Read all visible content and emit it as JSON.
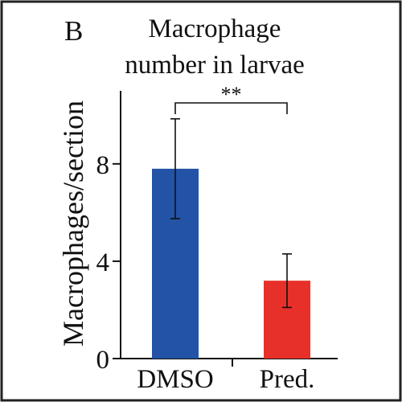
{
  "panel_label": "B",
  "chart_data": {
    "type": "bar",
    "title": [
      "Macrophage",
      "number in larvae"
    ],
    "xlabel": "",
    "ylabel": "Macrophages/section",
    "categories": [
      "DMSO",
      "Pred."
    ],
    "values": [
      7.8,
      3.2
    ],
    "errors": [
      2.05,
      1.1
    ],
    "colors": [
      "#2353a6",
      "#e8302b"
    ],
    "ylim": [
      0,
      11
    ],
    "yticks": [
      0,
      4,
      8
    ],
    "significance": {
      "from": 0,
      "to": 1,
      "label": "**"
    },
    "grid": false,
    "legend": "none"
  }
}
